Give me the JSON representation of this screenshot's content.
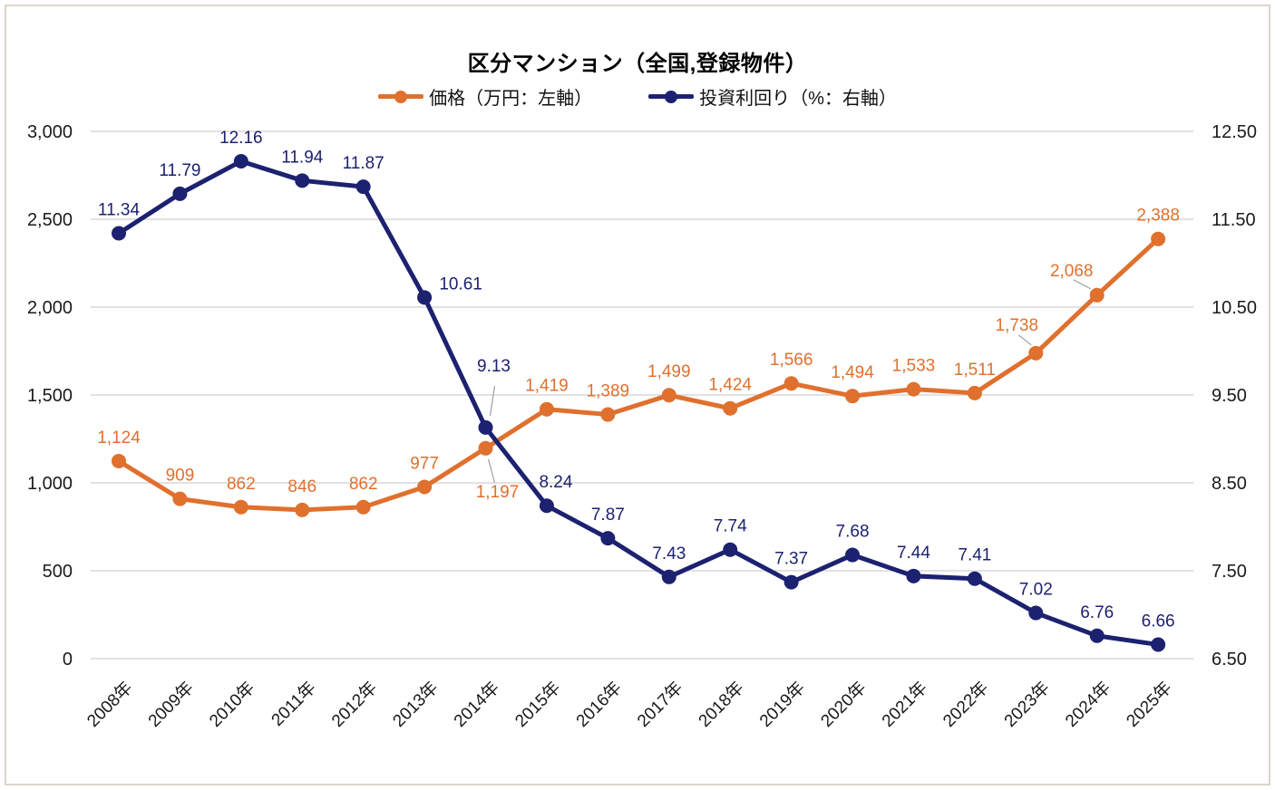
{
  "chart": {
    "title": "区分マンション（全国,登録物件）"
  },
  "chart_data": {
    "type": "line",
    "title": "区分マンション（全国,登録物件）",
    "categories": [
      "2008年",
      "2009年",
      "2010年",
      "2011年",
      "2012年",
      "2013年",
      "2014年",
      "2015年",
      "2016年",
      "2017年",
      "2018年",
      "2019年",
      "2020年",
      "2021年",
      "2022年",
      "2023年",
      "2024年",
      "2025年"
    ],
    "series": [
      {
        "name": "価格（万円：左軸）",
        "axis": "left",
        "color": "#E0702E",
        "marker": "circle",
        "values": [
          1124,
          909,
          862,
          846,
          862,
          977,
          1197,
          1419,
          1389,
          1499,
          1424,
          1566,
          1494,
          1533,
          1511,
          1738,
          2068,
          2388
        ],
        "label_format": "thousands",
        "label_overrides": {
          "6": {
            "dx": 13,
            "dy": 54,
            "leader": [
              3,
              12,
              10,
              38
            ]
          },
          "15": {
            "dx": -21,
            "dy": -25,
            "leader": [
              -5,
              -9,
              -19,
              -20
            ]
          },
          "16": {
            "dx": -28,
            "dy": -21,
            "leader": [
              -7,
              -7,
              -26,
              -17
            ]
          }
        }
      },
      {
        "name": "投資利回り（%：右軸）",
        "axis": "right",
        "color": "#1C2170",
        "marker": "circle",
        "values": [
          11.34,
          11.79,
          12.16,
          11.94,
          11.87,
          10.61,
          9.13,
          8.24,
          7.87,
          7.43,
          7.74,
          7.37,
          7.68,
          7.44,
          7.41,
          7.02,
          6.76,
          6.66
        ],
        "label_format": "2dp",
        "label_overrides": {
          "5": {
            "dx": 40,
            "dy": -9
          },
          "6": {
            "dx": 9,
            "dy": -62,
            "leader": [
              5,
              -13,
              10,
              -46
            ]
          },
          "7": {
            "dx": 10,
            "dy": -20
          }
        }
      }
    ],
    "axes": {
      "left": {
        "min": 0,
        "max": 3000,
        "step": 500,
        "format": "thousands",
        "tick_labels": [
          "0",
          "500",
          "1,000",
          "1,500",
          "2,000",
          "2,500",
          "3,000"
        ]
      },
      "right": {
        "min": 6.5,
        "max": 12.5,
        "step": 1,
        "format": "2dp",
        "tick_labels": [
          "6.50",
          "7.50",
          "8.50",
          "9.50",
          "10.50",
          "11.50",
          "12.50"
        ]
      }
    },
    "grid": true,
    "legend_position": "top",
    "colors": {
      "grid": "#D9D9D9",
      "axis_text": "#1A1A1A",
      "leader": "#A6A6A6",
      "border": "#DBD5C9",
      "background": "#FFFFFF",
      "price": "#E0702E",
      "yield": "#1C2170"
    }
  }
}
